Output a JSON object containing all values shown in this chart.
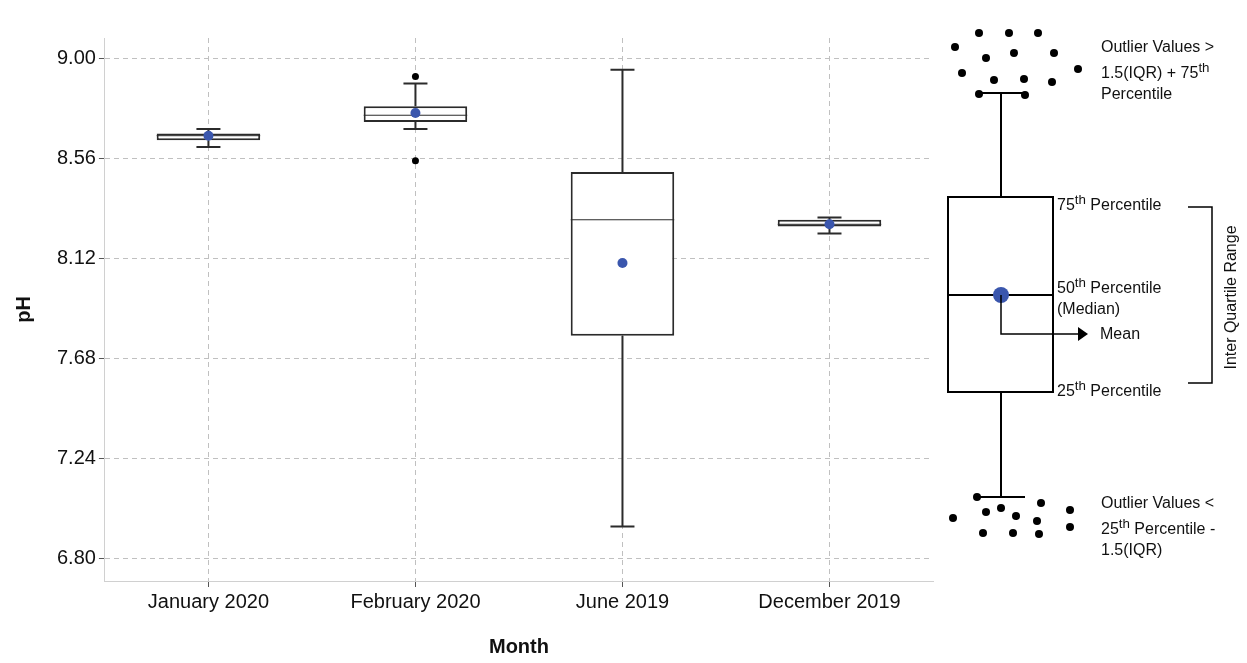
{
  "chart_data": {
    "type": "box",
    "xlabel": "Month",
    "ylabel": "pH",
    "categories": [
      "January 2020",
      "February 2020",
      "June 2019",
      "December 2019"
    ],
    "series": [
      {
        "color": "#2b2b2b",
        "boxes": [
          {
            "low": 8.61,
            "q1": 8.64,
            "median": 8.66,
            "q3": 8.67,
            "high": 8.69,
            "mean": 8.66
          },
          {
            "low": 8.69,
            "q1": 8.72,
            "median": 8.75,
            "q3": 8.79,
            "high": 8.89,
            "mean": 8.76,
            "outliers": [
              8.92,
              8.55
            ]
          },
          {
            "low": 6.94,
            "q1": 7.78,
            "median": 8.29,
            "q3": 8.5,
            "high": 8.95,
            "mean": 8.1
          },
          {
            "low": 8.23,
            "q1": 8.26,
            "median": 8.27,
            "q3": 8.29,
            "high": 8.3,
            "mean": 8.27
          }
        ]
      }
    ],
    "ylim": [
      6.7,
      9.09
    ],
    "yticks": [
      {
        "value": 6.8,
        "label": "6.80"
      },
      7.24,
      7.68,
      8.12,
      8.56,
      {
        "value": 9,
        "label": "9.00"
      }
    ],
    "grid": true,
    "legend": false,
    "annotations": [
      "Outlier Values  > 1.5(IQR) + 75$^{th}$ Percentile",
      "75$^{th}$ Percentile",
      "50$^{th}$ Percentile (Median)",
      "Mean",
      "25$^{th}$ Percentile",
      "Inter Quartile Range",
      "Outlier Values  < 25$^{th}$ Percentile - 1.5(IQR)"
    ]
  }
}
